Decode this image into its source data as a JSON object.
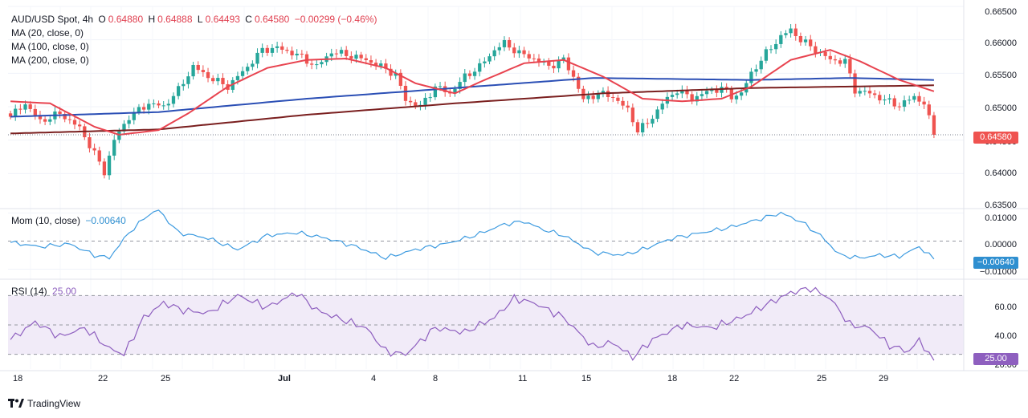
{
  "header": {
    "symbol": "AUD/USD Spot, 4h",
    "open_label": "O",
    "open": "0.64880",
    "high_label": "H",
    "high": "0.64888",
    "low_label": "L",
    "low": "0.64493",
    "close_label": "C",
    "close": "0.64580",
    "change": "−0.00299 (−0.46%)"
  },
  "indicators": {
    "ma20": "MA (20, close, 0)",
    "ma100": "MA (100, close, 0)",
    "ma200": "MA (200, close, 0)",
    "mom_label": "Mom (10, close)",
    "mom_value": "−0.00640",
    "rsi_label": "RSI (14)",
    "rsi_value": "25.00"
  },
  "price_axis": [
    "0.66500",
    "0.66000",
    "0.65500",
    "0.65000",
    "0.64500",
    "0.64000",
    "0.63500"
  ],
  "mom_axis": [
    "0.01000",
    "0.00000",
    "−0.01000"
  ],
  "rsi_axis": [
    "60.00",
    "40.00",
    "20.00"
  ],
  "badges": {
    "price": "0.64580",
    "mom": "−0.00640",
    "rsi": "25.00"
  },
  "dates": [
    {
      "label": "18",
      "bold": false
    },
    {
      "label": "22",
      "bold": false
    },
    {
      "label": "25",
      "bold": false
    },
    {
      "label": "Jul",
      "bold": true
    },
    {
      "label": "4",
      "bold": false
    },
    {
      "label": "8",
      "bold": false
    },
    {
      "label": "11",
      "bold": false
    },
    {
      "label": "15",
      "bold": false
    },
    {
      "label": "18",
      "bold": false
    },
    {
      "label": "22",
      "bold": false
    },
    {
      "label": "25",
      "bold": false
    },
    {
      "label": "29",
      "bold": false
    }
  ],
  "brand": "TradingView",
  "colors": {
    "up": "#26a69a",
    "down": "#ef5350",
    "ma20": "#e8434f",
    "ma100": "#2b4fb5",
    "ma200": "#7a1f1f",
    "mom": "#3d9be0",
    "rsi": "#8e5fbf"
  },
  "chart_data": {
    "type": "candlestick",
    "timeframe": "4h",
    "ylim": [
      0.635,
      0.665
    ],
    "close_anchors": [
      [
        0,
        0.6485
      ],
      [
        3,
        0.6505
      ],
      [
        6,
        0.6478
      ],
      [
        10,
        0.649
      ],
      [
        14,
        0.6468
      ],
      [
        17,
        0.643
      ],
      [
        19,
        0.6402
      ],
      [
        21,
        0.645
      ],
      [
        24,
        0.6485
      ],
      [
        28,
        0.6505
      ],
      [
        31,
        0.65
      ],
      [
        34,
        0.6525
      ],
      [
        37,
        0.656
      ],
      [
        40,
        0.6545
      ],
      [
        44,
        0.653
      ],
      [
        48,
        0.656
      ],
      [
        51,
        0.6585
      ],
      [
        54,
        0.6588
      ],
      [
        58,
        0.6578
      ],
      [
        62,
        0.656
      ],
      [
        65,
        0.6582
      ],
      [
        68,
        0.6578
      ],
      [
        72,
        0.657
      ],
      [
        75,
        0.656
      ],
      [
        78,
        0.6548
      ],
      [
        80,
        0.651
      ],
      [
        83,
        0.65
      ],
      [
        86,
        0.653
      ],
      [
        89,
        0.652
      ],
      [
        92,
        0.6545
      ],
      [
        95,
        0.656
      ],
      [
        98,
        0.6585
      ],
      [
        100,
        0.6595
      ],
      [
        103,
        0.658
      ],
      [
        106,
        0.6572
      ],
      [
        109,
        0.656
      ],
      [
        112,
        0.657
      ],
      [
        114,
        0.6545
      ],
      [
        116,
        0.651
      ],
      [
        119,
        0.652
      ],
      [
        122,
        0.6515
      ],
      [
        125,
        0.6495
      ],
      [
        127,
        0.6465
      ],
      [
        129,
        0.6475
      ],
      [
        132,
        0.6505
      ],
      [
        135,
        0.6525
      ],
      [
        138,
        0.6512
      ],
      [
        141,
        0.6522
      ],
      [
        144,
        0.6528
      ],
      [
        146,
        0.6515
      ],
      [
        148,
        0.652
      ],
      [
        150,
        0.655
      ],
      [
        153,
        0.658
      ],
      [
        156,
        0.6605
      ],
      [
        158,
        0.6615
      ],
      [
        160,
        0.66
      ],
      [
        163,
        0.6585
      ],
      [
        166,
        0.657
      ],
      [
        169,
        0.6568
      ],
      [
        171,
        0.6525
      ],
      [
        174,
        0.652
      ],
      [
        177,
        0.651
      ],
      [
        180,
        0.6502
      ],
      [
        183,
        0.6515
      ],
      [
        185,
        0.6505
      ],
      [
        187,
        0.6458
      ]
    ],
    "ma20_anchors": [
      [
        0,
        0.6508
      ],
      [
        8,
        0.6505
      ],
      [
        17,
        0.647
      ],
      [
        22,
        0.6458
      ],
      [
        30,
        0.6465
      ],
      [
        36,
        0.649
      ],
      [
        44,
        0.653
      ],
      [
        52,
        0.6558
      ],
      [
        60,
        0.657
      ],
      [
        68,
        0.6572
      ],
      [
        76,
        0.6558
      ],
      [
        82,
        0.6535
      ],
      [
        90,
        0.652
      ],
      [
        96,
        0.654
      ],
      [
        104,
        0.6565
      ],
      [
        112,
        0.657
      ],
      [
        120,
        0.6545
      ],
      [
        128,
        0.6512
      ],
      [
        136,
        0.6508
      ],
      [
        144,
        0.6512
      ],
      [
        150,
        0.653
      ],
      [
        158,
        0.657
      ],
      [
        166,
        0.6585
      ],
      [
        172,
        0.6568
      ],
      [
        180,
        0.654
      ],
      [
        187,
        0.6523
      ]
    ],
    "ma100_anchors": [
      [
        0,
        0.6485
      ],
      [
        30,
        0.6492
      ],
      [
        60,
        0.6512
      ],
      [
        90,
        0.6528
      ],
      [
        118,
        0.6543
      ],
      [
        150,
        0.654
      ],
      [
        170,
        0.6543
      ],
      [
        187,
        0.654
      ]
    ],
    "ma200_anchors": [
      [
        0,
        0.646
      ],
      [
        30,
        0.6466
      ],
      [
        60,
        0.6488
      ],
      [
        90,
        0.6505
      ],
      [
        120,
        0.652
      ],
      [
        150,
        0.6528
      ],
      [
        187,
        0.6532
      ]
    ],
    "mom_ylim": [
      -0.013,
      0.011
    ],
    "mom_anchors": [
      [
        0,
        -0.0005
      ],
      [
        6,
        -0.002
      ],
      [
        12,
        -0.001
      ],
      [
        17,
        -0.005
      ],
      [
        20,
        -0.006
      ],
      [
        24,
        0.003
      ],
      [
        28,
        0.0095
      ],
      [
        30,
        0.011
      ],
      [
        34,
        0.003
      ],
      [
        40,
        0.001
      ],
      [
        46,
        -0.003
      ],
      [
        52,
        0.002
      ],
      [
        58,
        0.003
      ],
      [
        64,
        0.001
      ],
      [
        70,
        -0.002
      ],
      [
        76,
        -0.006
      ],
      [
        82,
        -0.003
      ],
      [
        88,
        -0.001
      ],
      [
        94,
        0.002
      ],
      [
        100,
        0.006
      ],
      [
        104,
        0.007
      ],
      [
        108,
        0.004
      ],
      [
        112,
        0.002
      ],
      [
        118,
        -0.004
      ],
      [
        124,
        -0.005
      ],
      [
        128,
        -0.003
      ],
      [
        134,
        0.001
      ],
      [
        140,
        0.003
      ],
      [
        146,
        0.005
      ],
      [
        152,
        0.008
      ],
      [
        156,
        0.01
      ],
      [
        160,
        0.007
      ],
      [
        164,
        0.002
      ],
      [
        168,
        -0.005
      ],
      [
        172,
        -0.006
      ],
      [
        176,
        -0.005
      ],
      [
        180,
        -0.0055
      ],
      [
        184,
        -0.002
      ],
      [
        187,
        -0.0064
      ]
    ],
    "rsi_ylim": [
      20,
      80
    ],
    "rsi_anchors": [
      [
        0,
        40
      ],
      [
        5,
        52
      ],
      [
        10,
        42
      ],
      [
        15,
        48
      ],
      [
        20,
        34
      ],
      [
        23,
        30
      ],
      [
        27,
        55
      ],
      [
        31,
        65
      ],
      [
        35,
        60
      ],
      [
        40,
        58
      ],
      [
        46,
        70
      ],
      [
        52,
        62
      ],
      [
        58,
        72
      ],
      [
        62,
        60
      ],
      [
        66,
        55
      ],
      [
        72,
        48
      ],
      [
        76,
        32
      ],
      [
        80,
        30
      ],
      [
        86,
        48
      ],
      [
        92,
        45
      ],
      [
        98,
        55
      ],
      [
        102,
        68
      ],
      [
        106,
        65
      ],
      [
        112,
        55
      ],
      [
        118,
        35
      ],
      [
        122,
        38
      ],
      [
        126,
        28
      ],
      [
        130,
        40
      ],
      [
        136,
        50
      ],
      [
        142,
        48
      ],
      [
        148,
        55
      ],
      [
        152,
        62
      ],
      [
        158,
        72
      ],
      [
        162,
        75
      ],
      [
        166,
        68
      ],
      [
        170,
        50
      ],
      [
        174,
        48
      ],
      [
        178,
        36
      ],
      [
        182,
        32
      ],
      [
        184,
        40
      ],
      [
        187,
        25
      ]
    ],
    "rsi_levels": [
      70,
      50,
      30
    ]
  }
}
